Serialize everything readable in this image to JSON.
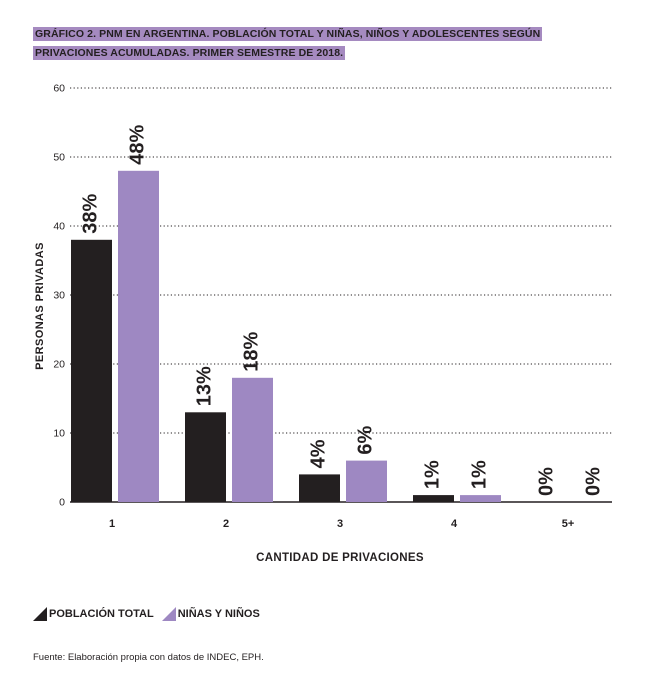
{
  "title_lines": [
    "GRÁFICO 2. PNM EN ARGENTINA. POBLACIÓN TOTAL Y NIÑAS, NIÑOS Y ADOLESCENTES SEGÚN",
    "PRIVACIONES ACUMULADAS. PRIMER SEMESTRE DE 2018."
  ],
  "source": "Fuente: Elaboración propia con datos de INDEC, EPH.",
  "chart_data": {
    "type": "bar",
    "title": "GRÁFICO 2. PNM EN ARGENTINA. POBLACIÓN TOTAL Y NIÑAS, NIÑOS Y ADOLESCENTES SEGÚN PRIVACIONES ACUMULADAS. PRIMER SEMESTRE DE 2018.",
    "xlabel": "CANTIDAD DE PRIVACIONES",
    "ylabel": "PERSONAS PRIVADAS",
    "categories": [
      "1",
      "2",
      "3",
      "4",
      "5+"
    ],
    "ylim": [
      0,
      60
    ],
    "yticks": [
      0,
      10,
      20,
      30,
      40,
      50,
      60
    ],
    "grid": "dotted horizontal",
    "legend_position": "bottom-left",
    "series": [
      {
        "name": "POBLACIÓN TOTAL",
        "color": "#231f20",
        "values": [
          38,
          13,
          4,
          1,
          0
        ],
        "labels": [
          "38%",
          "13%",
          "4%",
          "1%",
          "0%"
        ]
      },
      {
        "name": "NIÑAS Y NIÑOS",
        "color": "#9e88c2",
        "values": [
          48,
          18,
          6,
          1,
          0
        ],
        "labels": [
          "48%",
          "18%",
          "6%",
          "1%",
          "0%"
        ]
      }
    ]
  }
}
